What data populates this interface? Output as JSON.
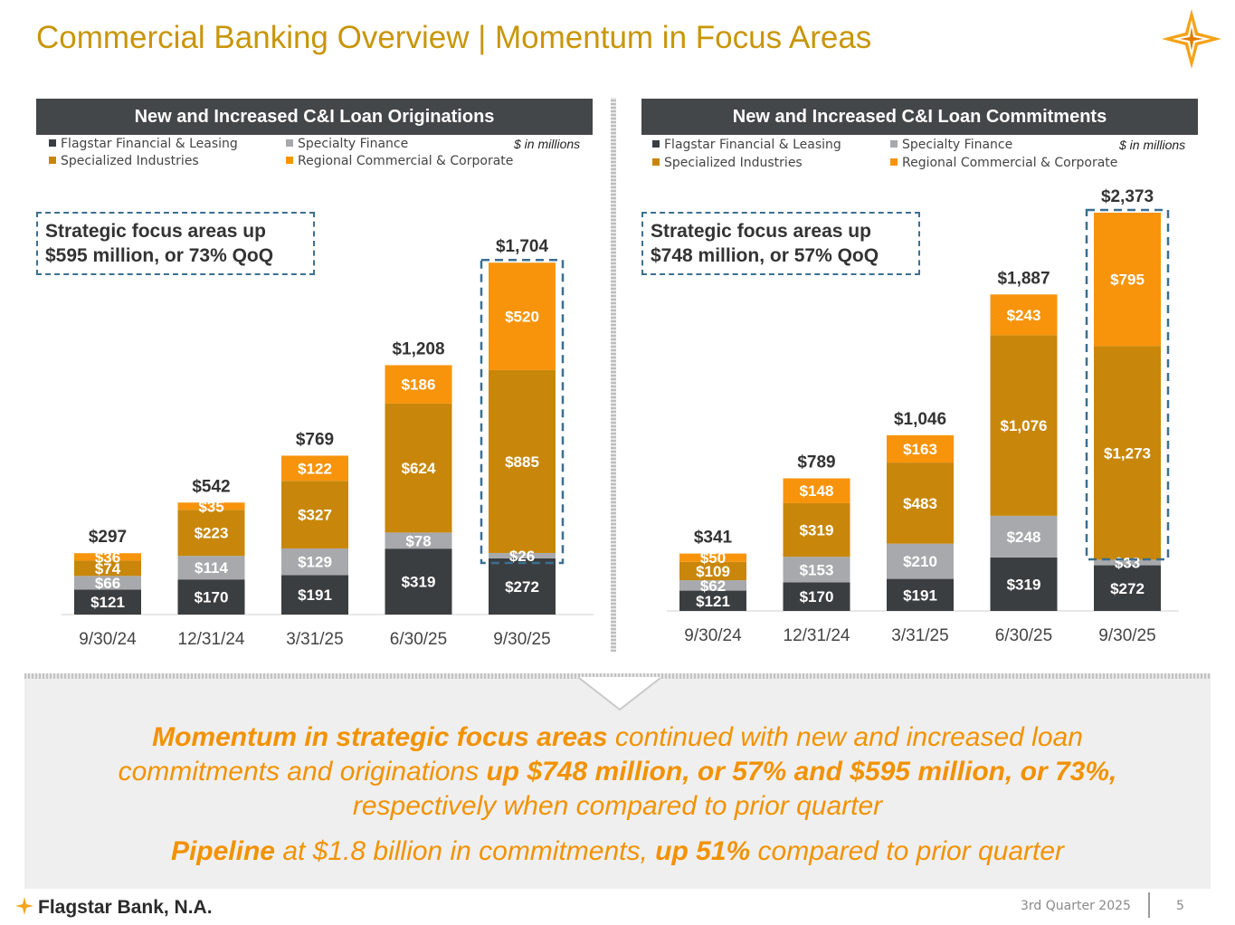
{
  "page": {
    "title": "Commercial Banking Overview | Momentum in Focus Areas",
    "units": "$ in millions",
    "footer_company": "Flagstar Bank, N.A.",
    "footer_quarter": "3rd Quarter 2025",
    "page_number": "5"
  },
  "legend": {
    "ffl": "Flagstar Financial & Leasing",
    "sf": "Specialty Finance",
    "si": "Specialized Industries",
    "rcc": "Regional Commercial & Corporate"
  },
  "colors": {
    "ffl": "#3b3e41",
    "sf": "#a7a9ac",
    "si": "#c8870a",
    "rcc": "#f7940c",
    "title": "#c8960a",
    "callout_border": "#3c6f91"
  },
  "left_panel": {
    "header": "New and Increased C&I Loan Originations",
    "callout_line1": "Strategic focus areas up",
    "callout_line2": "$595 million, or 73% QoQ"
  },
  "right_panel": {
    "header": "New and Increased  C&I Loan Commitments",
    "callout_line1": "Strategic focus areas up",
    "callout_line2": "$748 million, or 57% QoQ"
  },
  "chart_data": [
    {
      "type": "bar",
      "stacked": true,
      "title": "New and Increased C&I Loan Originations",
      "units": "$ in millions",
      "categories": [
        "9/30/24",
        "12/31/24",
        "3/31/25",
        "6/30/25",
        "9/30/25"
      ],
      "series": [
        {
          "name": "Flagstar Financial & Leasing",
          "key": "ffl",
          "values": [
            121,
            170,
            191,
            319,
            272
          ],
          "labels": [
            "$121",
            "$170",
            "$191",
            "$319",
            "$272"
          ]
        },
        {
          "name": "Specialty Finance",
          "key": "sf",
          "values": [
            66,
            114,
            129,
            78,
            26
          ],
          "labels": [
            "$66",
            "$114",
            "$129",
            "$78",
            "$26"
          ]
        },
        {
          "name": "Specialized Industries",
          "key": "si",
          "values": [
            74,
            223,
            327,
            624,
            885
          ],
          "labels": [
            "$74",
            "$223",
            "$327",
            "$624",
            "$885"
          ]
        },
        {
          "name": "Regional Commercial & Corporate",
          "key": "rcc",
          "values": [
            36,
            35,
            122,
            186,
            520
          ],
          "labels": [
            "$36",
            "$35",
            "$122",
            "$186",
            "$520"
          ]
        }
      ],
      "totals": [
        297,
        542,
        769,
        1208,
        1704
      ],
      "total_labels": [
        "$297",
        "$542",
        "$769",
        "$1,208",
        "$1,704"
      ],
      "ylim": [
        0,
        1704
      ],
      "highlight_category": "9/30/25",
      "legend_position": "top"
    },
    {
      "type": "bar",
      "stacked": true,
      "title": "New and Increased  C&I Loan Commitments",
      "units": "$ in millions",
      "categories": [
        "9/30/24",
        "12/31/24",
        "3/31/25",
        "6/30/25",
        "9/30/25"
      ],
      "series": [
        {
          "name": "Flagstar Financial & Leasing",
          "key": "ffl",
          "values": [
            121,
            170,
            191,
            319,
            272
          ],
          "labels": [
            "$121",
            "$170",
            "$191",
            "$319",
            "$272"
          ]
        },
        {
          "name": "Specialty Finance",
          "key": "sf",
          "values": [
            62,
            153,
            210,
            248,
            33
          ],
          "labels": [
            "$62",
            "$153",
            "$210",
            "$248",
            "$33"
          ]
        },
        {
          "name": "Specialized Industries",
          "key": "si",
          "values": [
            109,
            319,
            483,
            1076,
            1273
          ],
          "labels": [
            "$109",
            "$319",
            "$483",
            "$1,076",
            "$1,273"
          ]
        },
        {
          "name": "Regional Commercial & Corporate",
          "key": "rcc",
          "values": [
            50,
            148,
            163,
            243,
            795
          ],
          "labels": [
            "$50",
            "$148",
            "$163",
            "$243",
            "$795"
          ]
        }
      ],
      "totals": [
        341,
        789,
        1046,
        1887,
        2373
      ],
      "total_labels": [
        "$341",
        "$789",
        "$1,046",
        "$1,887",
        "$2,373"
      ],
      "ylim": [
        0,
        2373
      ],
      "highlight_category": "9/30/25",
      "legend_position": "top"
    }
  ],
  "summary": {
    "l1_a": "Momentum in strategic focus areas",
    "l1_b": " continued with new and increased loan",
    "l2_a": "commitments and originations ",
    "l2_b": "up $748 million, or 57% and $595 million, or 73%,",
    "l3": "respectively when compared to prior quarter",
    "l4_a": "Pipeline",
    "l4_b": " at $1.8 billion in commitments, ",
    "l4_c": "up 51%",
    "l4_d": " compared to prior quarter"
  }
}
